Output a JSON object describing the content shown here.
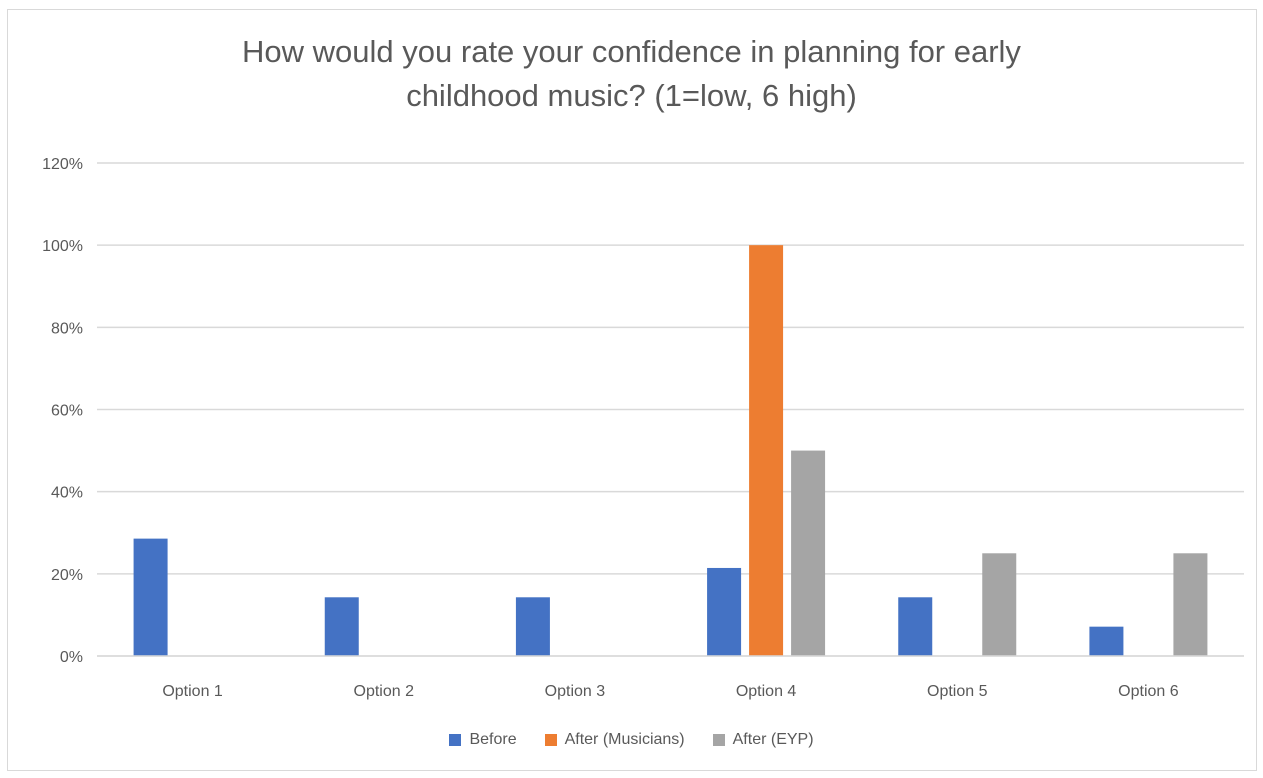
{
  "chart_data": {
    "type": "bar",
    "title_lines": [
      "How would you rate your confidence in planning for early",
      "childhood music? (1=low, 6 high)"
    ],
    "categories": [
      "Option 1",
      "Option 2",
      "Option 3",
      "Option 4",
      "Option 5",
      "Option 6"
    ],
    "series": [
      {
        "name": "Before",
        "color": "#4472c4",
        "values": [
          0.2857,
          0.1429,
          0.1429,
          0.2143,
          0.1429,
          0.0714
        ]
      },
      {
        "name": "After (Musicians)",
        "color": "#ed7d31",
        "values": [
          0,
          0,
          0,
          1.0,
          0,
          0
        ]
      },
      {
        "name": "After (EYP)",
        "color": "#a5a5a5",
        "values": [
          0,
          0,
          0,
          0.5,
          0.25,
          0.25
        ]
      }
    ],
    "yticks": [
      "0%",
      "20%",
      "40%",
      "60%",
      "80%",
      "100%",
      "120%"
    ],
    "ylim": [
      0,
      1.2
    ],
    "grid": true,
    "legend_position": "bottom"
  }
}
